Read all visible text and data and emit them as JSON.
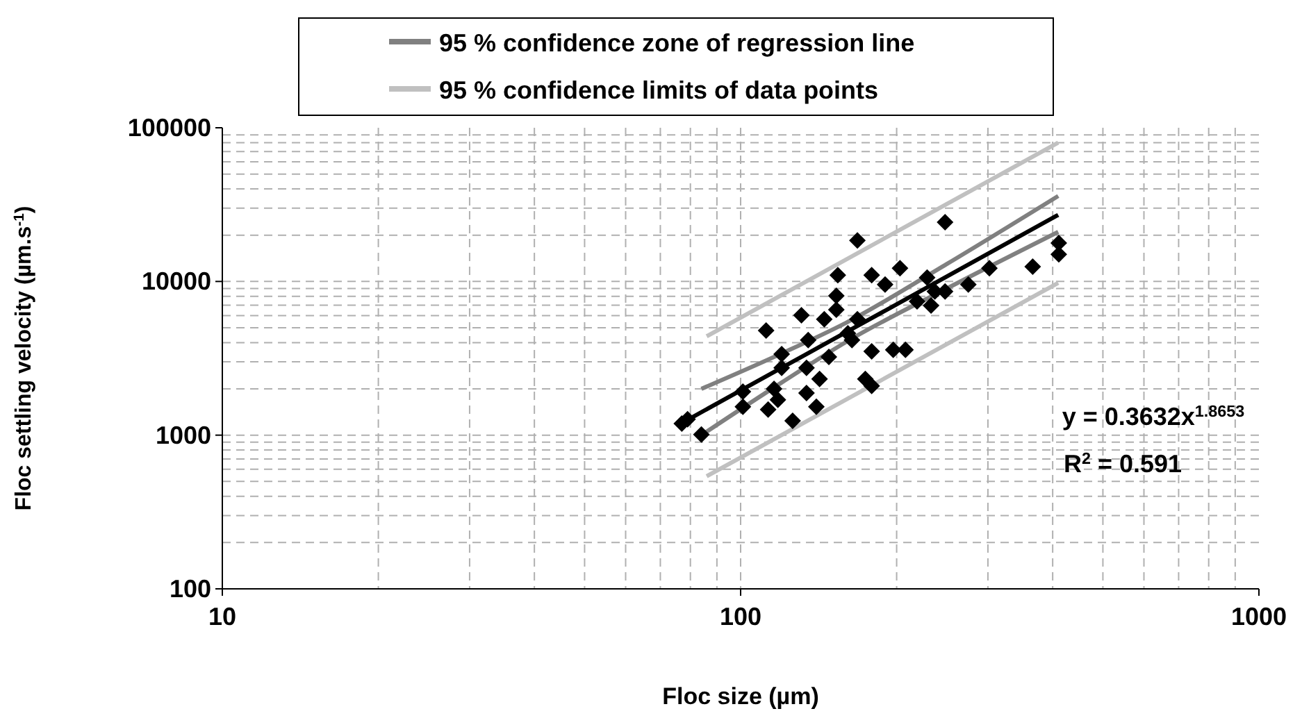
{
  "chart_data": {
    "type": "scatter",
    "xlabel": "Floc size (µm)",
    "ylabel": "Floc settling velocity (µm.s$^{-1}$)",
    "log": "xy",
    "xlim": [
      10,
      1000
    ],
    "xticks": [
      10,
      100,
      1000
    ],
    "ylim": [
      100,
      100000
    ],
    "yticks": [
      100,
      1000,
      10000,
      100000
    ],
    "grid": true,
    "legend": "top",
    "annotations": [
      "y = 0.3632x$^{1.8653}$",
      "R$^{2}$ = 0.591"
    ],
    "series": [
      {
        "color": "#000000",
        "marker": "diamond",
        "x": [
          248,
          168,
          154,
          179,
          203,
          190,
          229,
          237,
          248,
          219,
          233,
          275,
          302,
          153,
          153,
          131,
          112,
          145,
          168,
          135,
          161,
          164,
          148,
          179,
          197,
          208,
          120,
          120,
          134,
          142,
          174,
          179,
          101,
          101,
          116,
          118,
          113,
          126,
          134,
          140,
          79,
          84,
          77,
          366,
          411,
          411
        ],
        "values": [
          24300,
          18500,
          11000,
          11000,
          12200,
          9540,
          10600,
          8600,
          8600,
          7430,
          6980,
          9540,
          12200,
          8070,
          6550,
          6030,
          4800,
          5670,
          5670,
          4150,
          4600,
          4150,
          3230,
          3510,
          3590,
          3590,
          3370,
          2740,
          2740,
          2320,
          2320,
          2090,
          1920,
          1530,
          2000,
          1700,
          1470,
          1240,
          1880,
          1530,
          1270,
          1010,
          1190,
          12500,
          17800,
          15000
        ]
      },
      {
        "type": "line",
        "color": "#000000",
        "x": [
          80,
          120,
          160,
          250,
          410
        ],
        "values": [
          1288,
          2741,
          4687,
          10770,
          27100
        ]
      },
      {
        "type": "line",
        "name": "95 % confidence zone of regression line",
        "color": "#808080",
        "x": [
          84,
          120,
          160,
          250,
          410
        ],
        "values": [
          2000,
          3400,
          5400,
          13000,
          36000
        ]
      },
      {
        "type": "line",
        "color": "#808080",
        "x": [
          84,
          120,
          160,
          250,
          410
        ],
        "values": [
          1000,
          2200,
          4050,
          9000,
          21000
        ]
      },
      {
        "type": "line",
        "name": "95 % confidence limits of data points",
        "color": "#c0c0c0",
        "x": [
          86,
          410
        ],
        "values": [
          4400,
          80000
        ]
      },
      {
        "type": "line",
        "color": "#c0c0c0",
        "x": [
          86,
          410
        ],
        "values": [
          540,
          9800
        ]
      }
    ]
  }
}
